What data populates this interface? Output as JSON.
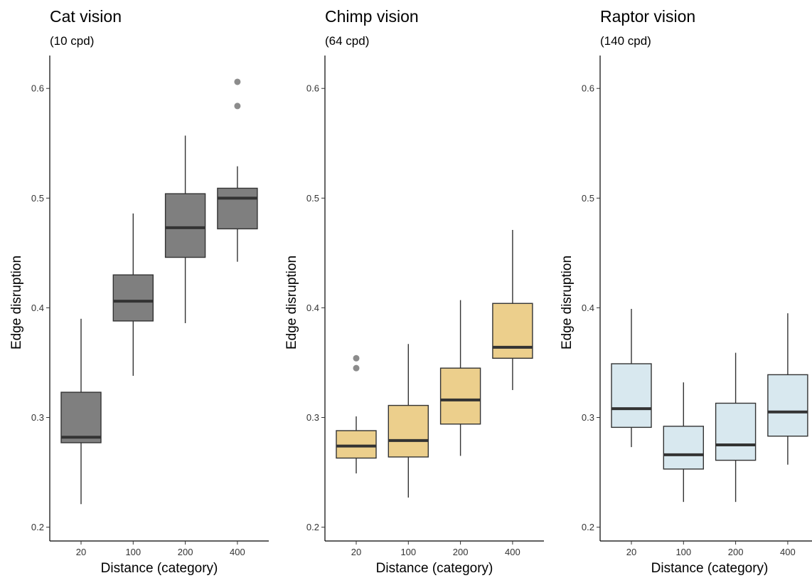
{
  "chart_data": [
    {
      "type": "box",
      "title": "Cat vision",
      "subtitle": "(10 cpd)",
      "xlabel": "Distance (category)",
      "ylabel": "Edge disruption",
      "ylim": [
        0.19,
        0.63
      ],
      "yticks": [
        "0.2",
        "0.3",
        "0.4",
        "0.5",
        "0.6"
      ],
      "fill": "#7f7f7f",
      "categories": [
        "20",
        "100",
        "200",
        "400"
      ],
      "boxes": [
        {
          "min": 0.221,
          "q1": 0.277,
          "median": 0.282,
          "q3": 0.323,
          "max": 0.39,
          "outliers": []
        },
        {
          "min": 0.338,
          "q1": 0.388,
          "median": 0.406,
          "q3": 0.43,
          "max": 0.486,
          "outliers": []
        },
        {
          "min": 0.386,
          "q1": 0.446,
          "median": 0.473,
          "q3": 0.504,
          "max": 0.557,
          "outliers": []
        },
        {
          "min": 0.442,
          "q1": 0.472,
          "median": 0.5,
          "q3": 0.509,
          "max": 0.529,
          "outliers": [
            0.584,
            0.606
          ]
        }
      ]
    },
    {
      "type": "box",
      "title": "Chimp vision",
      "subtitle": "(64 cpd)",
      "xlabel": "Distance (category)",
      "ylabel": "Edge disruption",
      "ylim": [
        0.19,
        0.63
      ],
      "yticks": [
        "0.2",
        "0.3",
        "0.4",
        "0.5",
        "0.6"
      ],
      "fill": "#eccf8c",
      "categories": [
        "20",
        "100",
        "200",
        "400"
      ],
      "boxes": [
        {
          "min": 0.249,
          "q1": 0.263,
          "median": 0.274,
          "q3": 0.288,
          "max": 0.301,
          "outliers": [
            0.345,
            0.354
          ]
        },
        {
          "min": 0.227,
          "q1": 0.264,
          "median": 0.279,
          "q3": 0.311,
          "max": 0.367,
          "outliers": []
        },
        {
          "min": 0.265,
          "q1": 0.294,
          "median": 0.316,
          "q3": 0.345,
          "max": 0.407,
          "outliers": []
        },
        {
          "min": 0.325,
          "q1": 0.354,
          "median": 0.364,
          "q3": 0.404,
          "max": 0.471,
          "outliers": []
        }
      ]
    },
    {
      "type": "box",
      "title": "Raptor vision",
      "subtitle": "(140 cpd)",
      "xlabel": "Distance (category)",
      "ylabel": "Edge disruption",
      "ylim": [
        0.19,
        0.63
      ],
      "yticks": [
        "0.2",
        "0.3",
        "0.4",
        "0.5",
        "0.6"
      ],
      "fill": "#d8e8ef",
      "categories": [
        "20",
        "100",
        "200",
        "400"
      ],
      "boxes": [
        {
          "min": 0.273,
          "q1": 0.291,
          "median": 0.308,
          "q3": 0.349,
          "max": 0.399,
          "outliers": []
        },
        {
          "min": 0.223,
          "q1": 0.253,
          "median": 0.266,
          "q3": 0.292,
          "max": 0.332,
          "outliers": []
        },
        {
          "min": 0.223,
          "q1": 0.261,
          "median": 0.275,
          "q3": 0.313,
          "max": 0.359,
          "outliers": []
        },
        {
          "min": 0.257,
          "q1": 0.283,
          "median": 0.305,
          "q3": 0.339,
          "max": 0.395,
          "outliers": []
        }
      ]
    }
  ]
}
